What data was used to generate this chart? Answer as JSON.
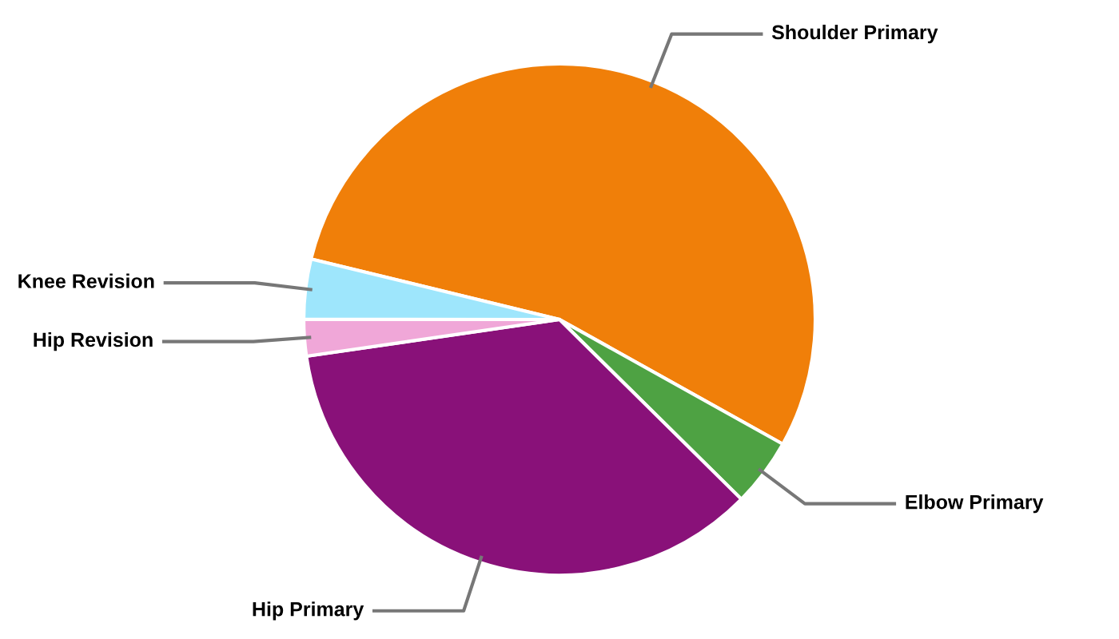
{
  "chart_data": {
    "type": "pie",
    "categories": [
      "Shoulder Primary",
      "Elbow Primary",
      "Hip Primary",
      "Hip Revision",
      "Knee Revision"
    ],
    "values": [
      54.3,
      4.3,
      35.3,
      2.3,
      3.8
    ],
    "colors": [
      "#f07f09",
      "#4ea243",
      "#891179",
      "#f0a7d8",
      "#9ee6fc"
    ],
    "legend": false
  }
}
